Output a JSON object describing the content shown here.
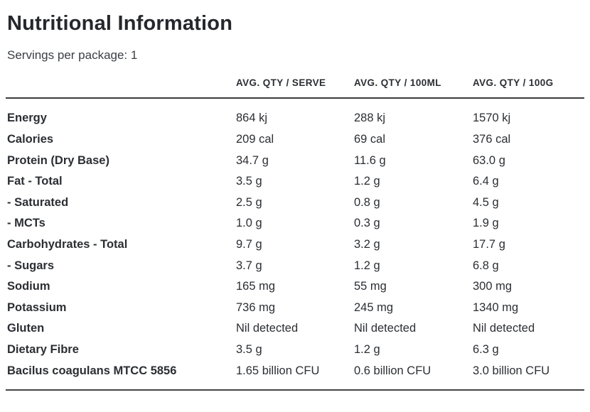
{
  "page": {
    "title": "Nutritional Information",
    "servings_note": "Servings per package: 1"
  },
  "table": {
    "columns": {
      "serve": "AVG. QTY / SERVE",
      "per100ml": "AVG. QTY / 100ML",
      "per100g": "AVG. QTY / 100G"
    },
    "rows": [
      {
        "label": "Energy",
        "serve": "864 kj",
        "per100ml": "288 kj",
        "per100g": "1570 kj"
      },
      {
        "label": "Calories",
        "serve": "209 cal",
        "per100ml": "69 cal",
        "per100g": "376 cal"
      },
      {
        "label": "Protein (Dry Base)",
        "serve": "34.7 g",
        "per100ml": "11.6 g",
        "per100g": "63.0 g"
      },
      {
        "label": "Fat - Total",
        "serve": "3.5 g",
        "per100ml": "1.2 g",
        "per100g": "6.4 g"
      },
      {
        "label": "- Saturated",
        "serve": "2.5 g",
        "per100ml": "0.8 g",
        "per100g": "4.5 g"
      },
      {
        "label": "- MCTs",
        "serve": "1.0 g",
        "per100ml": "0.3 g",
        "per100g": "1.9 g"
      },
      {
        "label": "Carbohydrates - Total",
        "serve": "9.7 g",
        "per100ml": "3.2 g",
        "per100g": "17.7 g"
      },
      {
        "label": "- Sugars",
        "serve": "3.7 g",
        "per100ml": "1.2 g",
        "per100g": "6.8 g"
      },
      {
        "label": "Sodium",
        "serve": "165 mg",
        "per100ml": "55 mg",
        "per100g": "300 mg"
      },
      {
        "label": "Potassium",
        "serve": "736 mg",
        "per100ml": "245 mg",
        "per100g": "1340 mg"
      },
      {
        "label": "Gluten",
        "serve": "Nil detected",
        "per100ml": "Nil detected",
        "per100g": "Nil detected"
      },
      {
        "label": "Dietary Fibre",
        "serve": "3.5 g",
        "per100ml": "1.2 g",
        "per100g": "6.3 g"
      },
      {
        "label": "Bacilus coagulans MTCC 5856",
        "serve": "1.65 billion CFU",
        "per100ml": "0.6 billion CFU",
        "per100g": "3.0 billion CFU"
      }
    ],
    "text_color": "#2b2e33",
    "rule_color": "#3c3c3c"
  }
}
